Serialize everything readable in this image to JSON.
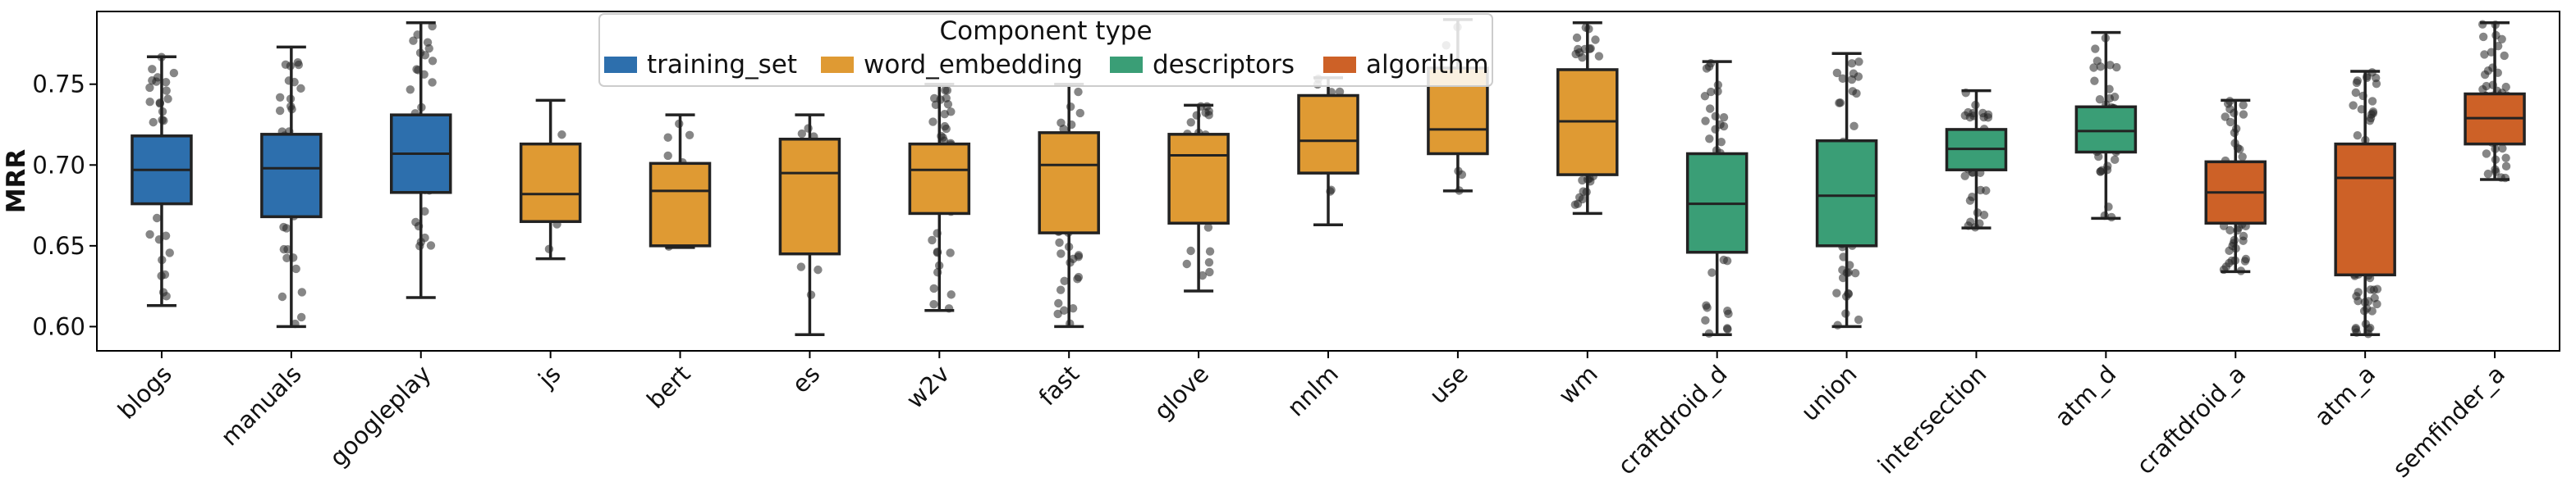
{
  "chart_data": {
    "type": "box",
    "ylabel": "MRR",
    "ylim": [
      0.585,
      0.795
    ],
    "yticks": [
      "0.60",
      "0.65",
      "0.70",
      "0.75"
    ],
    "grid": false,
    "legend": {
      "title": "Component type",
      "placement": "top-center",
      "entries": [
        {
          "name": "training_set",
          "color": "#2d6fad"
        },
        {
          "name": "word_embedding",
          "color": "#df9a33"
        },
        {
          "name": "descriptors",
          "color": "#3a9e76"
        },
        {
          "name": "algorithm",
          "color": "#cd6127"
        }
      ]
    },
    "categories": [
      {
        "label": "blogs",
        "type": "training_set",
        "whisker_low": 0.613,
        "q1": 0.676,
        "median": 0.697,
        "q3": 0.718,
        "whisker_high": 0.767,
        "n_points": 50
      },
      {
        "label": "manuals",
        "type": "training_set",
        "whisker_low": 0.6,
        "q1": 0.668,
        "median": 0.698,
        "q3": 0.719,
        "whisker_high": 0.773,
        "n_points": 50
      },
      {
        "label": "googleplay",
        "type": "training_set",
        "whisker_low": 0.618,
        "q1": 0.683,
        "median": 0.707,
        "q3": 0.731,
        "whisker_high": 0.788,
        "n_points": 50
      },
      {
        "label": "js",
        "type": "word_embedding",
        "whisker_low": 0.642,
        "q1": 0.665,
        "median": 0.682,
        "q3": 0.713,
        "whisker_high": 0.74,
        "n_points": 10
      },
      {
        "label": "bert",
        "type": "word_embedding",
        "whisker_low": 0.649,
        "q1": 0.65,
        "median": 0.684,
        "q3": 0.701,
        "whisker_high": 0.731,
        "n_points": 10
      },
      {
        "label": "es",
        "type": "word_embedding",
        "whisker_low": 0.595,
        "q1": 0.645,
        "median": 0.695,
        "q3": 0.716,
        "whisker_high": 0.731,
        "n_points": 10
      },
      {
        "label": "w2v",
        "type": "word_embedding",
        "whisker_low": 0.61,
        "q1": 0.67,
        "median": 0.697,
        "q3": 0.713,
        "whisker_high": 0.75,
        "n_points": 50
      },
      {
        "label": "fast",
        "type": "word_embedding",
        "whisker_low": 0.6,
        "q1": 0.658,
        "median": 0.7,
        "q3": 0.72,
        "whisker_high": 0.75,
        "n_points": 50
      },
      {
        "label": "glove",
        "type": "word_embedding",
        "whisker_low": 0.622,
        "q1": 0.664,
        "median": 0.706,
        "q3": 0.719,
        "whisker_high": 0.737,
        "n_points": 30
      },
      {
        "label": "nnlm",
        "type": "word_embedding",
        "whisker_low": 0.663,
        "q1": 0.695,
        "median": 0.715,
        "q3": 0.743,
        "whisker_high": 0.754,
        "n_points": 10
      },
      {
        "label": "use",
        "type": "word_embedding",
        "whisker_low": 0.684,
        "q1": 0.707,
        "median": 0.722,
        "q3": 0.76,
        "whisker_high": 0.79,
        "n_points": 10
      },
      {
        "label": "wm",
        "type": "word_embedding",
        "whisker_low": 0.67,
        "q1": 0.694,
        "median": 0.727,
        "q3": 0.759,
        "whisker_high": 0.788,
        "n_points": 40
      },
      {
        "label": "craftdroid_d",
        "type": "descriptors",
        "whisker_low": 0.595,
        "q1": 0.646,
        "median": 0.676,
        "q3": 0.707,
        "whisker_high": 0.764,
        "n_points": 60
      },
      {
        "label": "union",
        "type": "descriptors",
        "whisker_low": 0.6,
        "q1": 0.65,
        "median": 0.681,
        "q3": 0.715,
        "whisker_high": 0.769,
        "n_points": 60
      },
      {
        "label": "intersection",
        "type": "descriptors",
        "whisker_low": 0.661,
        "q1": 0.697,
        "median": 0.71,
        "q3": 0.722,
        "whisker_high": 0.746,
        "n_points": 50
      },
      {
        "label": "atm_d",
        "type": "descriptors",
        "whisker_low": 0.667,
        "q1": 0.708,
        "median": 0.721,
        "q3": 0.736,
        "whisker_high": 0.782,
        "n_points": 50
      },
      {
        "label": "craftdroid_a",
        "type": "algorithm",
        "whisker_low": 0.634,
        "q1": 0.664,
        "median": 0.683,
        "q3": 0.702,
        "whisker_high": 0.74,
        "n_points": 60
      },
      {
        "label": "atm_a",
        "type": "algorithm",
        "whisker_low": 0.595,
        "q1": 0.632,
        "median": 0.692,
        "q3": 0.713,
        "whisker_high": 0.758,
        "n_points": 80
      },
      {
        "label": "semfinder_a",
        "type": "algorithm",
        "whisker_low": 0.691,
        "q1": 0.713,
        "median": 0.729,
        "q3": 0.744,
        "whisker_high": 0.788,
        "n_points": 60
      }
    ]
  }
}
